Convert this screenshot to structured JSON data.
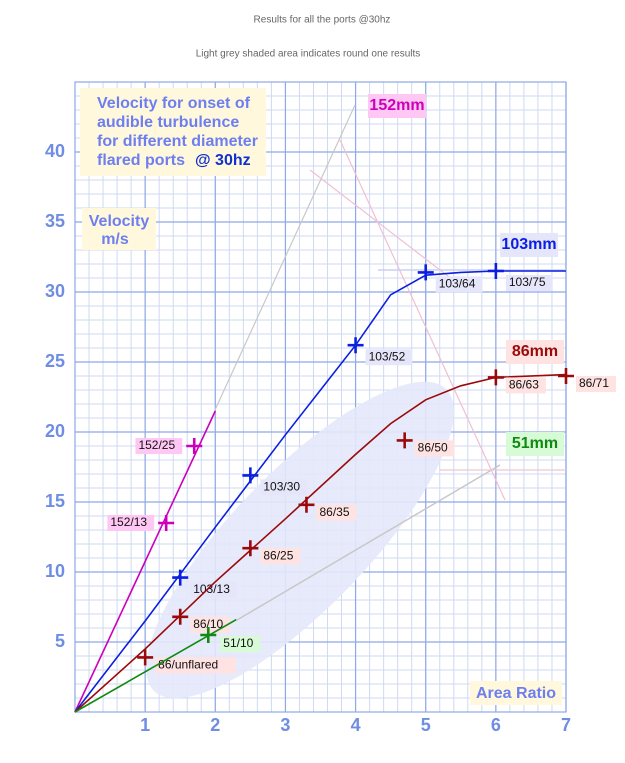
{
  "chart_data": {
    "type": "line",
    "title": "Results for all the ports @30hz",
    "subtitle": "Light grey shaded area indicates round one results",
    "annotation": [
      "Velocity for onset of",
      "audible turbulence",
      "for different diameter",
      "flared ports"
    ],
    "annotation_emphasis": "@ 30hz",
    "y_label": [
      "Velocity",
      "m/s"
    ],
    "x_label": "Area Ratio",
    "xlim": [
      0,
      7
    ],
    "ylim": [
      0,
      45
    ],
    "xticks": [
      1,
      2,
      3,
      4,
      5,
      6,
      7
    ],
    "yticks": [
      5,
      10,
      15,
      20,
      25,
      30,
      35,
      40
    ],
    "grid": true,
    "minor_grid_step": {
      "x": 0.2,
      "y": 1
    },
    "series": [
      {
        "name": "152mm",
        "color": "#cc00bb",
        "label_bg": "#ffc8f4",
        "labels": [
          "152/13",
          "152/25"
        ],
        "x": [
          1.3,
          1.7
        ],
        "values": [
          13.5,
          19
        ],
        "curve": {
          "x": [
            0,
            2
          ],
          "y": [
            0,
            21.5
          ]
        }
      },
      {
        "name": "103mm",
        "color": "#0a1fe0",
        "label_bg": "#e6e6fb",
        "labels": [
          "103/13",
          "103/30",
          "103/52",
          "103/64",
          "103/75"
        ],
        "x": [
          1.5,
          2.5,
          4,
          5,
          6
        ],
        "values": [
          9.6,
          16.9,
          26.2,
          31.4,
          31.5
        ],
        "curve": {
          "x": [
            0,
            1,
            2,
            3,
            4,
            4.5,
            5,
            5.5,
            6,
            7
          ],
          "y": [
            0,
            6.5,
            13.2,
            19.8,
            26.2,
            29.8,
            31.2,
            31.4,
            31.5,
            31.5
          ]
        }
      },
      {
        "name": "86mm",
        "color": "#9a0a0a",
        "label_bg": "#ffe2e2",
        "labels": [
          "86/unflared",
          "86/10",
          "86/25",
          "86/35",
          "86/50",
          "86/63",
          "86/71"
        ],
        "x": [
          1,
          1.5,
          2.5,
          3.3,
          4.7,
          6,
          7
        ],
        "values": [
          3.9,
          6.8,
          11.7,
          14.8,
          19.4,
          23.9,
          24
        ],
        "curve": {
          "x": [
            0,
            1,
            2,
            3,
            4,
            4.5,
            5,
            5.5,
            6,
            7
          ],
          "y": [
            0,
            4.5,
            9.3,
            13.8,
            18.4,
            20.6,
            22.3,
            23.3,
            23.9,
            24.1
          ]
        }
      },
      {
        "name": "51mm",
        "color": "#108a10",
        "label_bg": "#d6fbd6",
        "labels": [
          "51/10"
        ],
        "x": [
          1.9
        ],
        "values": [
          5.5
        ],
        "curve": {
          "x": [
            0,
            2.3
          ],
          "y": [
            0,
            6.6
          ]
        }
      }
    ]
  }
}
